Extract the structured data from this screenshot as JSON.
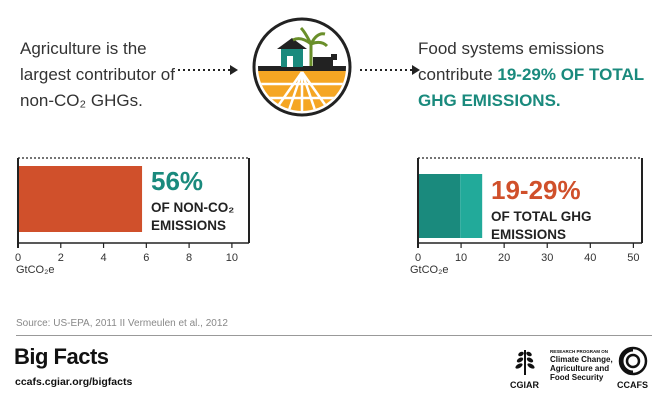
{
  "intro_left": {
    "line1": "Agriculture is the",
    "line2": "largest contributor of",
    "line3": "non-CO₂ GHGs."
  },
  "intro_right": {
    "line1": "Food systems emissions",
    "line2_prefix": "contribute ",
    "line2_highlight": "19-29% OF TOTAL",
    "line3_highlight": "GHG EMISSIONS."
  },
  "chart_data": [
    {
      "type": "bar",
      "orientation": "horizontal",
      "values": [
        5.8
      ],
      "xlim": [
        0,
        10.8
      ],
      "ticks": [
        "0",
        "2",
        "4",
        "6",
        "8",
        "10"
      ],
      "tick_values": [
        0,
        2,
        4,
        6,
        8,
        10
      ],
      "unit_label": "GtCO₂e",
      "annotation": {
        "value": "56%",
        "line1": "OF NON-CO₂",
        "line2": "EMISSIONS"
      },
      "colors": {
        "bar": "#d0502b",
        "annotation": "#1a8a7d"
      }
    },
    {
      "type": "bar",
      "orientation": "horizontal",
      "stacked": true,
      "series": [
        {
          "values": [
            9.8
          ],
          "color": "#1a8a7d"
        },
        {
          "values": [
            5.1
          ],
          "color": "#22aa9a"
        }
      ],
      "xlim": [
        0,
        52
      ],
      "ticks": [
        "0",
        "10",
        "20",
        "30",
        "40",
        "50"
      ],
      "tick_values": [
        0,
        10,
        20,
        30,
        40,
        50
      ],
      "unit_label": "GtCO₂e",
      "annotation": {
        "value": "19-29%",
        "line1": "OF TOTAL GHG",
        "line2": "EMISSIONS"
      },
      "colors": {
        "annotation": "#d0502b"
      }
    }
  ],
  "source": "Source: US-EPA, 2011 II Vermeulen et al., 2012",
  "footer": {
    "title": "Big Facts",
    "url": "ccafs.cgiar.org/bigfacts",
    "cgiar_label": "CGIAR",
    "program_small": "RESEARCH PROGRAM ON",
    "program_line1": "Climate Change,",
    "program_line2": "Agriculture and",
    "program_line3": "Food Security",
    "ccafs_label": "CCAFS"
  },
  "icons": [
    "farm-icon",
    "arrow-dotted-icon",
    "wheat-icon",
    "ccafs-logo-icon"
  ]
}
